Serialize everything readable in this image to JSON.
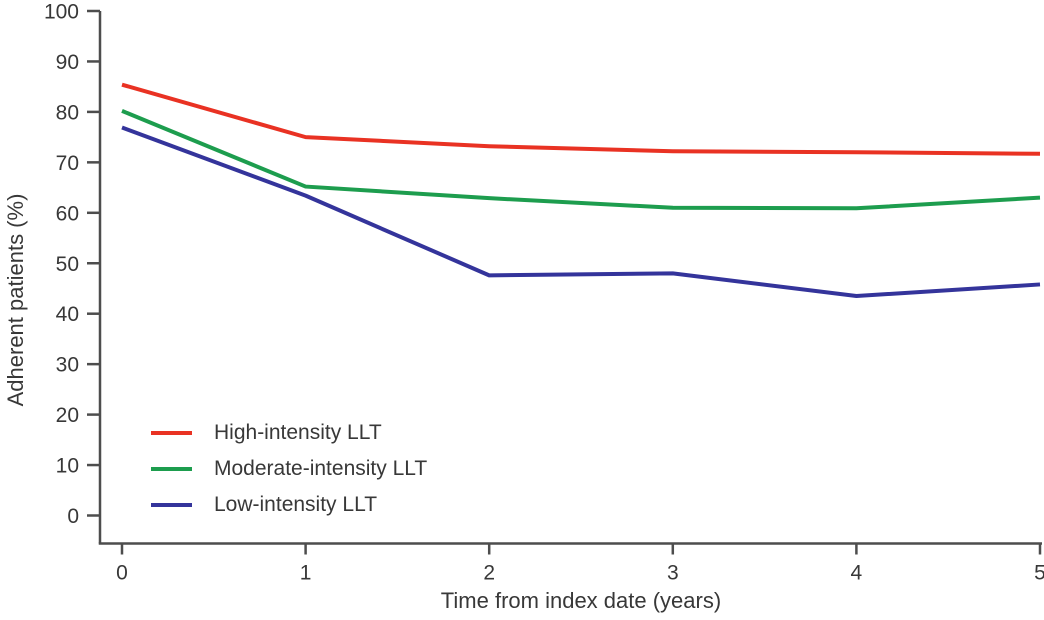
{
  "chart_data": {
    "type": "line",
    "title": "",
    "xlabel": "Time from index date (years)",
    "ylabel": "Adherent patients (%)",
    "x": [
      0,
      1,
      2,
      3,
      4,
      5
    ],
    "xticks": [
      0,
      1,
      2,
      3,
      4,
      5
    ],
    "yticks": [
      0,
      10,
      20,
      30,
      40,
      50,
      60,
      70,
      80,
      90,
      100
    ],
    "xlim": [
      0,
      5
    ],
    "ylim": [
      0,
      100
    ],
    "grid": false,
    "legend_position": "inside-lower-left",
    "axis_color": "#4d4d4d",
    "text_color": "#383838",
    "series": [
      {
        "id": "high-intensity",
        "name": "High-intensity LLT",
        "color": "#e93223",
        "values": [
          85.4,
          75.0,
          73.2,
          72.2,
          72.0,
          71.7
        ]
      },
      {
        "id": "moderate-intensity",
        "name": "Moderate-intensity LLT",
        "color": "#1d9d4e",
        "values": [
          80.2,
          65.2,
          62.9,
          61.0,
          60.9,
          63.0
        ]
      },
      {
        "id": "low-intensity",
        "name": "Low-intensity LLT",
        "color": "#34349b",
        "values": [
          76.9,
          63.4,
          47.6,
          48.0,
          43.5,
          45.8
        ]
      }
    ]
  }
}
